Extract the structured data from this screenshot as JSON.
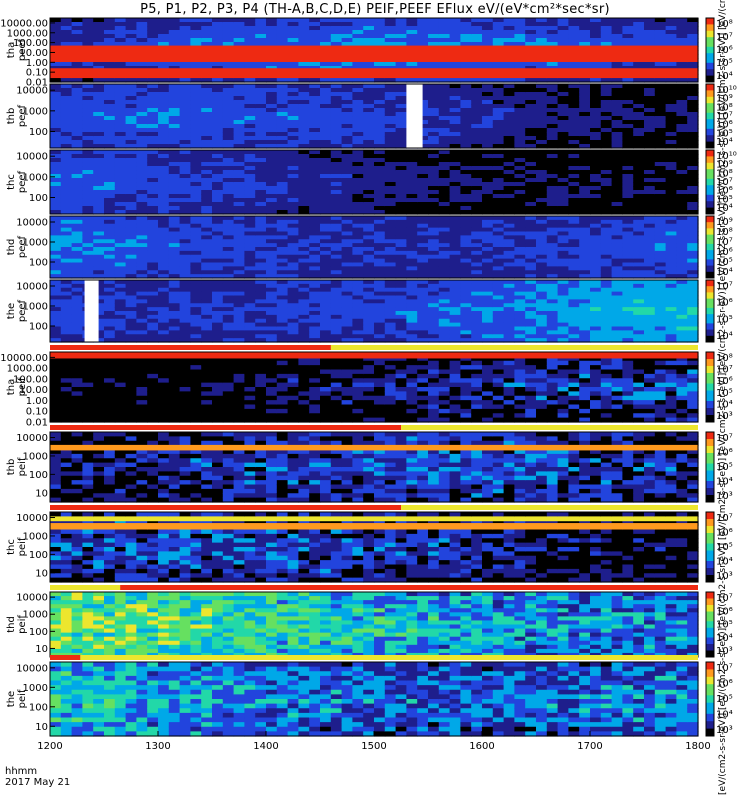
{
  "title": "P5, P1, P2, P3, P4 (TH-A,B,C,D,E) PEIF,PEEF EFlux eV/(eV*cm²*sec*sr)",
  "footer": {
    "time_label": "hhmm",
    "date_label": "2017 May 21"
  },
  "colorbar_title": "[eV/(cm2-s-sr-eV)] [eV/(cm2-s-sr-eV)] [eV/(cm2-s-sr-eV)] [eV/(cm2-s-sr-eV)] [eV/(cm2-s-sr-eV)] [eV/(cm2-s-sr-eV)] [eV/(cm2-s-sr-eV)] [eV/(cm2-s-sr-eV)] [eV/(cm2-s-sr-eV)] [eV/(cm2-s-sr-eV)]",
  "colors": {
    "palette": [
      "#000000",
      "#1e1e8c",
      "#2244dd",
      "#00a8e8",
      "#22d8a8",
      "#66e060",
      "#ece62e",
      "#ff9a1e",
      "#ee2a12"
    ],
    "bar_red": "#ee2a12",
    "bar_yellow": "#ece62e",
    "gap": "#ffffff"
  },
  "chart_data": {
    "type": "heatmap",
    "x_axis": {
      "range": [
        1200,
        1800
      ],
      "ticks": [
        "1200",
        "1300",
        "1400",
        "1500",
        "1600",
        "1700",
        "1800"
      ]
    },
    "panels": [
      {
        "id": "tha-peef",
        "probe": "tha",
        "quantity": "peef",
        "ylabels": [
          "10000.00",
          "1000.00",
          "100.00",
          "10.00",
          "1.00",
          "0.10",
          "0.01"
        ],
        "ylog": [
          -2,
          4.5
        ],
        "cbticks": [
          "10⁸",
          "10⁷",
          "10⁶",
          "10⁵",
          "10⁴"
        ],
        "base": 5.2,
        "gaps": [],
        "bands": [
          [
            0.2,
            1.7,
            10.5
          ],
          [
            -1.6,
            -0.6,
            9.8
          ]
        ],
        "topbar": null
      },
      {
        "id": "thb-peef",
        "probe": "thb",
        "quantity": "peef",
        "ylabels": [
          "10000",
          "1000",
          "100"
        ],
        "ylog": [
          1.2,
          4.3
        ],
        "cbticks": [
          "10¹⁰",
          "10⁹",
          "10⁸",
          "10⁷",
          "10⁶",
          "10⁵",
          "10⁴"
        ],
        "base": 4.8,
        "gaps": [
          [
            1530,
            1545
          ]
        ],
        "bands": [],
        "topbar": null
      },
      {
        "id": "thc-peef",
        "probe": "thc",
        "quantity": "peef",
        "ylabels": [
          "10000",
          "1000",
          "100"
        ],
        "ylog": [
          1.2,
          4.3
        ],
        "cbticks": [
          "10¹⁰",
          "10⁹",
          "10⁸",
          "10⁷",
          "10⁶",
          "10⁵",
          "10⁴"
        ],
        "base": 4.9,
        "gaps": [],
        "bands": [],
        "topbar": null
      },
      {
        "id": "thd-peef",
        "probe": "thd",
        "quantity": "peef",
        "ylabels": [
          "10000",
          "1000",
          "100"
        ],
        "ylog": [
          1.2,
          4.3
        ],
        "cbticks": [
          "10⁹",
          "10⁸",
          "10⁷",
          "10⁶",
          "10⁵",
          "10⁴"
        ],
        "base": 5.6,
        "gaps": [],
        "bands": [],
        "topbar": null
      },
      {
        "id": "the-peef",
        "probe": "the",
        "quantity": "peef",
        "ylabels": [
          "10000",
          "1000",
          "100"
        ],
        "ylog": [
          1.2,
          4.3
        ],
        "cbticks": [
          "10⁷",
          "10⁶",
          "10⁵",
          "10⁴"
        ],
        "base": 5.7,
        "gaps": [
          [
            1232,
            1245
          ]
        ],
        "bands": [],
        "topbar": null
      },
      {
        "id": "tha-peif",
        "probe": "tha",
        "quantity": "peif",
        "ylabels": [
          "10000.00",
          "1000.00",
          "100.00",
          "10.00",
          "1.00",
          "0.10",
          "0.01"
        ],
        "ylog": [
          -2,
          4.5
        ],
        "cbticks": [
          "10⁸",
          "10⁷",
          "10⁶",
          "10⁵",
          "10⁴",
          "10³"
        ],
        "base": 3.4,
        "gaps": [],
        "bands": [
          [
            3.9,
            4.3,
            7.6
          ]
        ],
        "topbar": [
          1200,
          1460
        ]
      },
      {
        "id": "thb-peif",
        "probe": "thb",
        "quantity": "peif",
        "ylabels": [
          "10000",
          "1000",
          "100",
          "10"
        ],
        "ylog": [
          0.5,
          4.3
        ],
        "cbticks": [
          "10⁷",
          "10⁶",
          "10⁵",
          "10⁴",
          "10³"
        ],
        "base": 3.5,
        "gaps": [],
        "bands": [
          [
            3.3,
            3.6,
            7.2
          ]
        ],
        "topbar": [
          1200,
          1525
        ]
      },
      {
        "id": "thc-peif",
        "probe": "thc",
        "quantity": "peif",
        "ylabels": [
          "10000",
          "1000",
          "100",
          "10"
        ],
        "ylog": [
          0.5,
          4.3
        ],
        "cbticks": [
          "10⁷",
          "10⁶",
          "10⁵",
          "10⁴",
          "10³"
        ],
        "base": 3.5,
        "gaps": [],
        "bands": [
          [
            3.4,
            3.7,
            7.2
          ],
          [
            3.8,
            4.0,
            6.2
          ]
        ],
        "topbar": [
          1200,
          1525
        ]
      },
      {
        "id": "thd-peif",
        "probe": "thd",
        "quantity": "peif",
        "ylabels": [
          "10000",
          "1000",
          "100",
          "10"
        ],
        "ylog": [
          0.5,
          4.3
        ],
        "cbticks": [
          "10⁷",
          "10⁶",
          "10⁵",
          "10⁴",
          "10³"
        ],
        "base": 5.2,
        "gaps": [],
        "bands": [],
        "topbar": [
          1265,
          1800
        ]
      },
      {
        "id": "the-peif",
        "probe": "the",
        "quantity": "peif",
        "ylabels": [
          "10000",
          "1000",
          "100",
          "10"
        ],
        "ylog": [
          0.5,
          4.3
        ],
        "cbticks": [
          "10⁷",
          "10⁶",
          "10⁵",
          "10⁴",
          "10³"
        ],
        "base": 4.9,
        "gaps": [],
        "bands": [],
        "topbar": [
          1200,
          1228
        ]
      }
    ]
  }
}
